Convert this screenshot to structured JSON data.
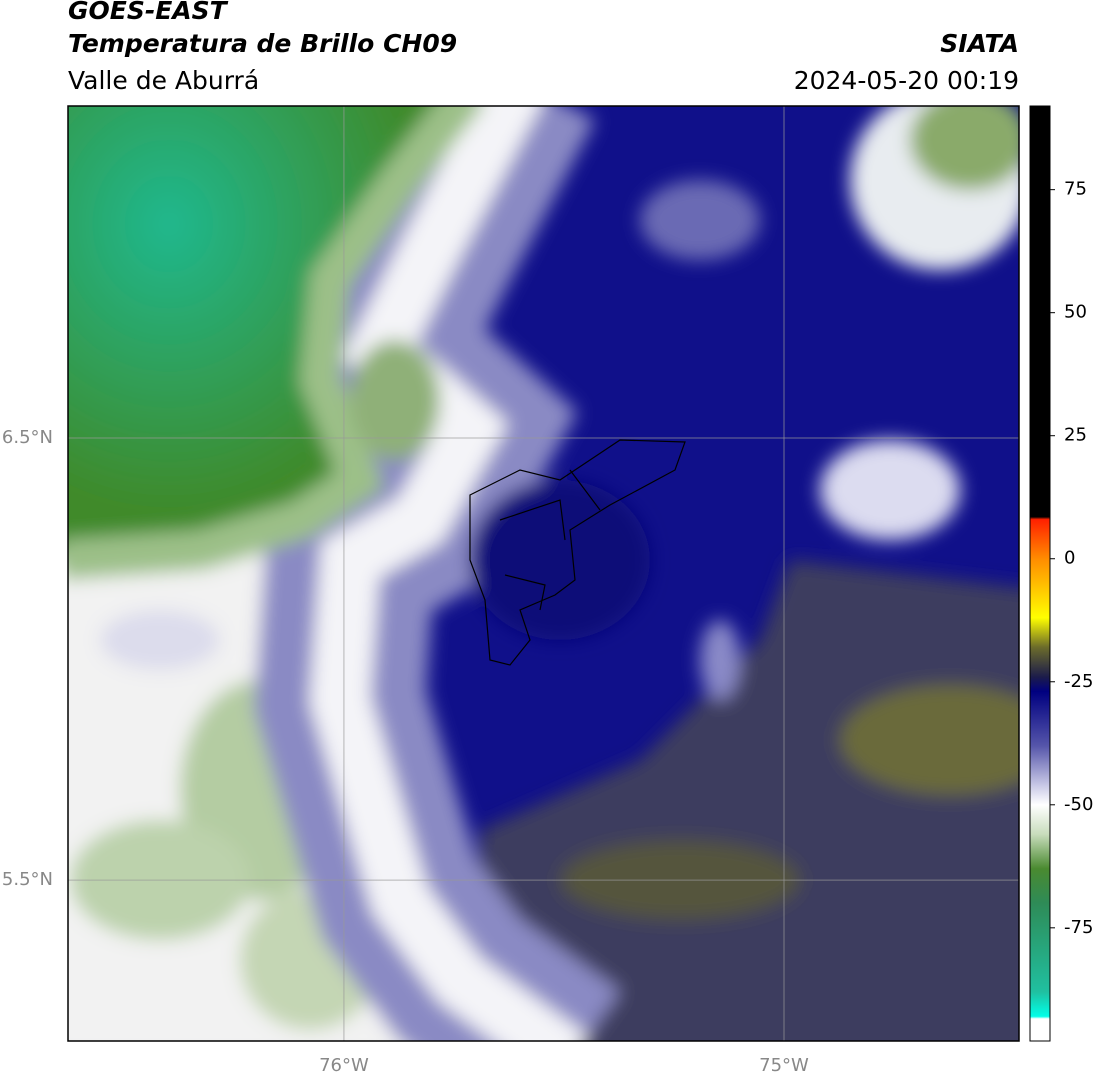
{
  "header": {
    "title": "GOES-EAST",
    "subtitle": "Temperatura de Brillo CH09",
    "source": "SIATA",
    "region": "Valle de Aburrá",
    "timestamp": "2024-05-20 00:19"
  },
  "map": {
    "xlim": [
      -76.627,
      -74.466
    ],
    "ylim": [
      5.136,
      7.251
    ],
    "xticks": [
      {
        "value": -76,
        "label": "76°W"
      },
      {
        "value": -75,
        "label": "75°W"
      }
    ],
    "yticks": [
      {
        "value": 6.5,
        "label": "6.5°N"
      },
      {
        "value": 5.5,
        "label": "5.5°N"
      }
    ],
    "grid": true
  },
  "colorbar": {
    "clim": [
      -98,
      92
    ],
    "ticks": [
      75,
      50,
      25,
      0,
      -25,
      -50,
      -75
    ],
    "stops": [
      {
        "value": 92,
        "color": "#000000"
      },
      {
        "value": 8.5,
        "color": "#000000"
      },
      {
        "value": 8,
        "color": "#ff2000"
      },
      {
        "value": 0,
        "color": "#ff8c00"
      },
      {
        "value": -12,
        "color": "#ffff00"
      },
      {
        "value": -18,
        "color": "#6b6b2a"
      },
      {
        "value": -24,
        "color": "#1c1c4a"
      },
      {
        "value": -27,
        "color": "#000080"
      },
      {
        "value": -38,
        "color": "#5555aa"
      },
      {
        "value": -46,
        "color": "#c8c8e6"
      },
      {
        "value": -50,
        "color": "#ffffff"
      },
      {
        "value": -56,
        "color": "#c8dcbc"
      },
      {
        "value": -63,
        "color": "#4a8a30"
      },
      {
        "value": -70,
        "color": "#2e8b57"
      },
      {
        "value": -88,
        "color": "#20c0a0"
      },
      {
        "value": -93,
        "color": "#00ffe8"
      },
      {
        "value": -93.5,
        "color": "#ffffff"
      },
      {
        "value": -98,
        "color": "#ffffff"
      }
    ]
  }
}
